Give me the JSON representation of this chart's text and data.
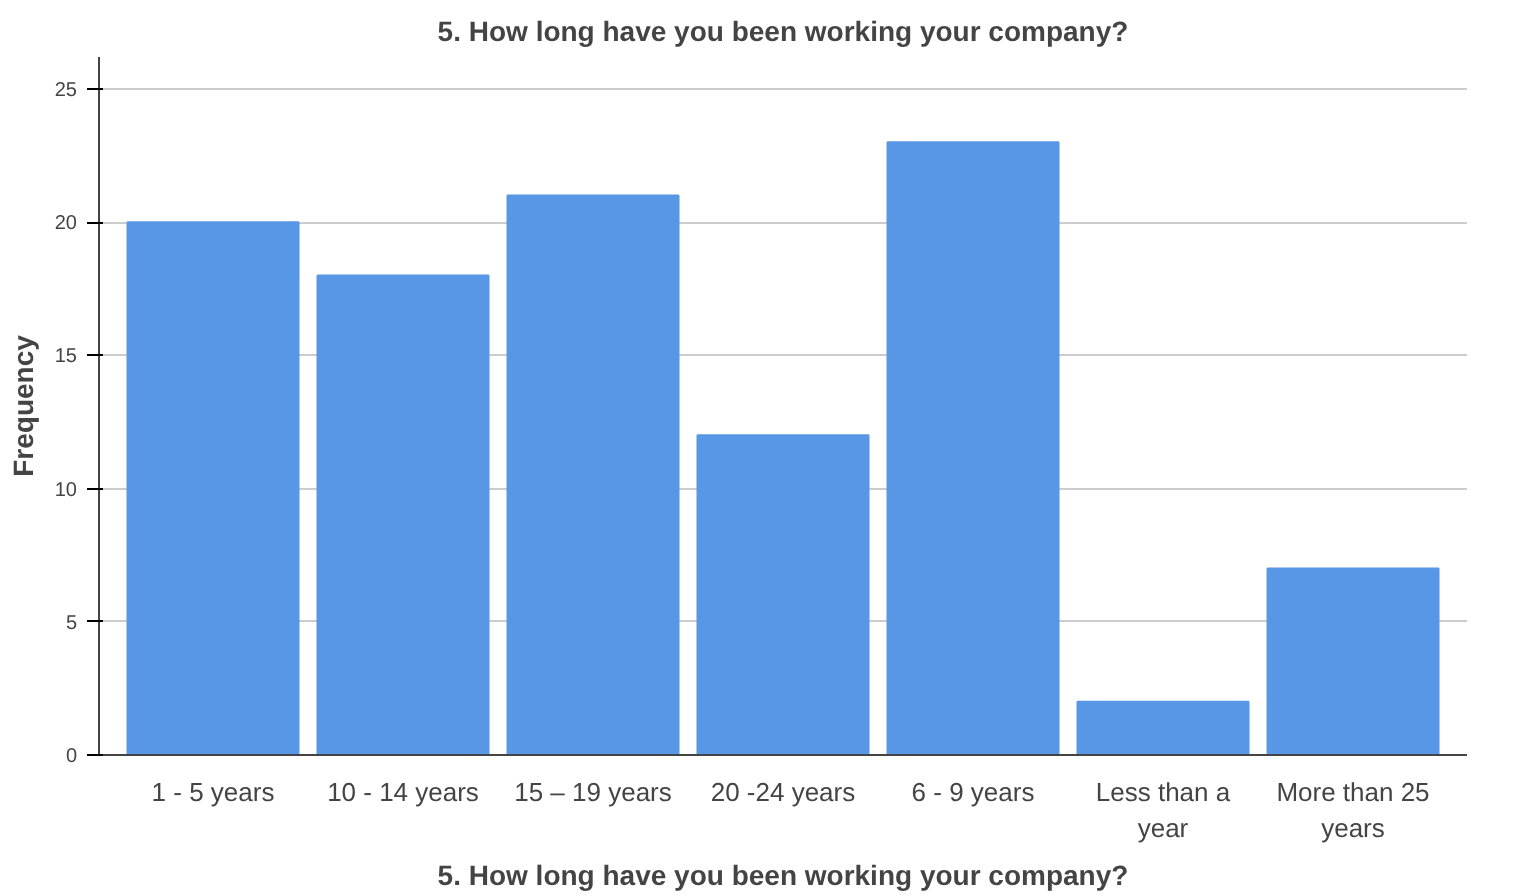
{
  "chart_data": {
    "type": "bar",
    "title": "5. How long have you been working your company?",
    "xlabel": "5. How long have you been working your company?",
    "ylabel": "Frequency",
    "categories": [
      "1 - 5 years",
      "10 - 14 years",
      "15 – 19 years",
      "20 -24 years",
      "6 - 9 years",
      "Less than a year",
      "More than 25 years"
    ],
    "values": [
      20,
      18,
      21,
      12,
      23,
      2,
      7
    ],
    "color": "#5896e6",
    "ylim": [
      0,
      26.2
    ],
    "yticks": [
      0,
      5,
      10,
      15,
      20,
      25
    ],
    "grid": "y"
  }
}
